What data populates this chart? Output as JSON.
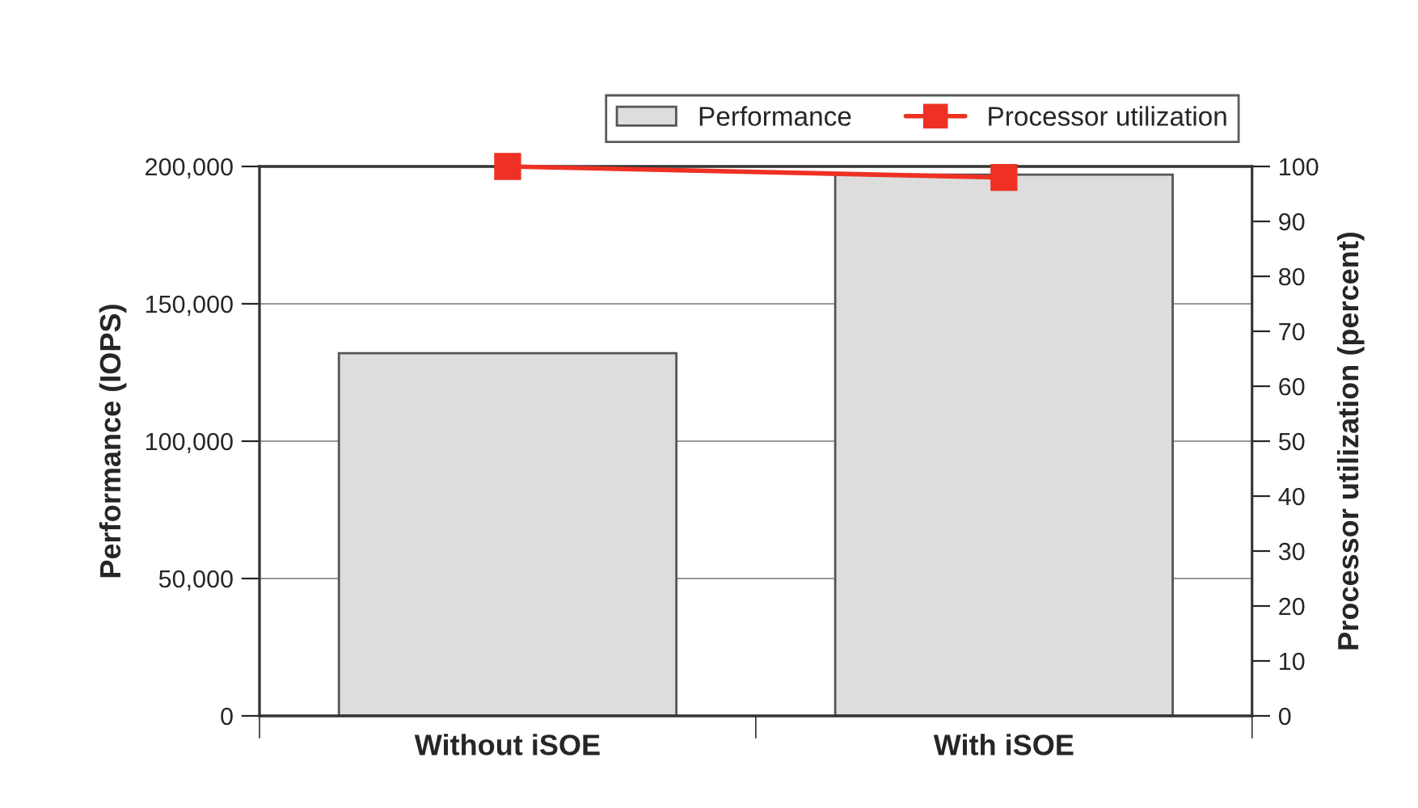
{
  "chart_data": {
    "type": "bar",
    "categories": [
      "Without iSOE",
      "With iSOE"
    ],
    "series": [
      {
        "name": "Performance",
        "color": "#dcdddc",
        "values": [
          132000,
          197000
        ]
      },
      {
        "name": "Processor utilization",
        "type": "line",
        "axis": "y2",
        "color": "#ee3124",
        "marker": "square",
        "values": [
          100,
          98
        ]
      }
    ],
    "ylabel": "Performance (IOPS)",
    "y2label": "Processor utilization (percent)",
    "ylim": [
      0,
      200000
    ],
    "yticks": [
      {
        "value": 0,
        "label": "0"
      },
      {
        "value": 50000,
        "label": "50,000"
      },
      {
        "value": 100000,
        "label": "100,000"
      },
      {
        "value": 150000,
        "label": "150,000"
      },
      {
        "value": 200000,
        "label": "200,000"
      }
    ],
    "y2lim": [
      0,
      100
    ],
    "y2ticks": [
      0,
      10,
      20,
      30,
      40,
      50,
      60,
      70,
      80,
      90,
      100
    ],
    "grid": "y",
    "legend": "top right"
  }
}
